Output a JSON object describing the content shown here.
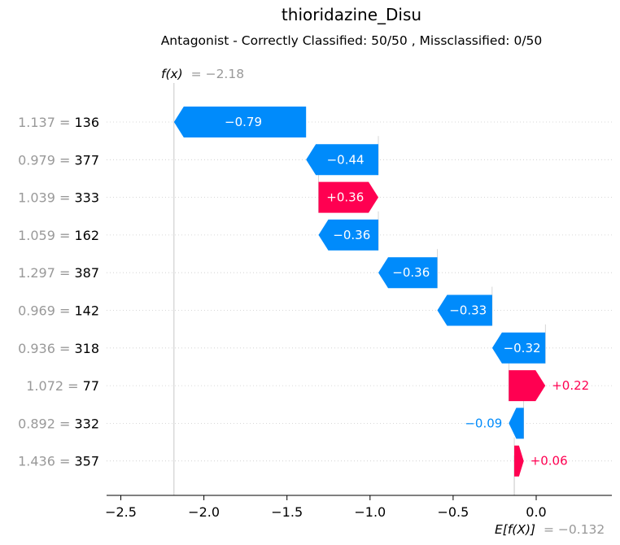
{
  "title": "thioridazine_Disu",
  "subtitle": "Antagonist - Correctly Classified: 50/50 , Missclassified: 0/50",
  "fx": {
    "label": "f(x)",
    "value_text": "= −2.18",
    "value": -2.18
  },
  "efx": {
    "label": "E[f(X)]",
    "value_text": "= −0.132",
    "value": -0.132
  },
  "colors": {
    "negative": "#008bfb",
    "positive": "#ff0051",
    "muted": "#999999"
  },
  "chart_data": {
    "type": "waterfall",
    "title": "thioridazine_Disu",
    "base_value": -0.132,
    "output_value": -2.18,
    "xlim": [
      -2.6,
      0.45
    ],
    "xticks": [
      {
        "v": -2.5,
        "label": "−2.5"
      },
      {
        "v": -2.0,
        "label": "−2.0"
      },
      {
        "v": -1.5,
        "label": "−1.5"
      },
      {
        "v": -1.0,
        "label": "−1.0"
      },
      {
        "v": -0.5,
        "label": "−0.5"
      },
      {
        "v": 0.0,
        "label": "0.0"
      }
    ],
    "features": [
      {
        "value": "1.137",
        "name": "136",
        "contribution": -0.79,
        "label": "−0.79",
        "start": -1.385,
        "end": -2.18
      },
      {
        "value": "0.979",
        "name": "377",
        "contribution": -0.44,
        "label": "−0.44",
        "start": -0.95,
        "end": -1.385
      },
      {
        "value": "1.039",
        "name": "333",
        "contribution": 0.36,
        "label": "+0.36",
        "start": -1.31,
        "end": -0.95
      },
      {
        "value": "1.059",
        "name": "162",
        "contribution": -0.36,
        "label": "−0.36",
        "start": -0.95,
        "end": -1.31
      },
      {
        "value": "1.297",
        "name": "387",
        "contribution": -0.36,
        "label": "−0.36",
        "start": -0.595,
        "end": -0.95
      },
      {
        "value": "0.969",
        "name": "142",
        "contribution": -0.33,
        "label": "−0.33",
        "start": -0.265,
        "end": -0.595
      },
      {
        "value": "0.936",
        "name": "318",
        "contribution": -0.32,
        "label": "−0.32",
        "start": 0.055,
        "end": -0.265
      },
      {
        "value": "1.072",
        "name": "77",
        "contribution": 0.22,
        "label": "+0.22",
        "start": -0.165,
        "end": 0.055
      },
      {
        "value": "0.892",
        "name": "332",
        "contribution": -0.09,
        "label": "−0.09",
        "start": -0.075,
        "end": -0.165
      },
      {
        "value": "1.436",
        "name": "357",
        "contribution": 0.06,
        "label": "+0.06",
        "start": -0.132,
        "end": -0.075
      }
    ]
  }
}
